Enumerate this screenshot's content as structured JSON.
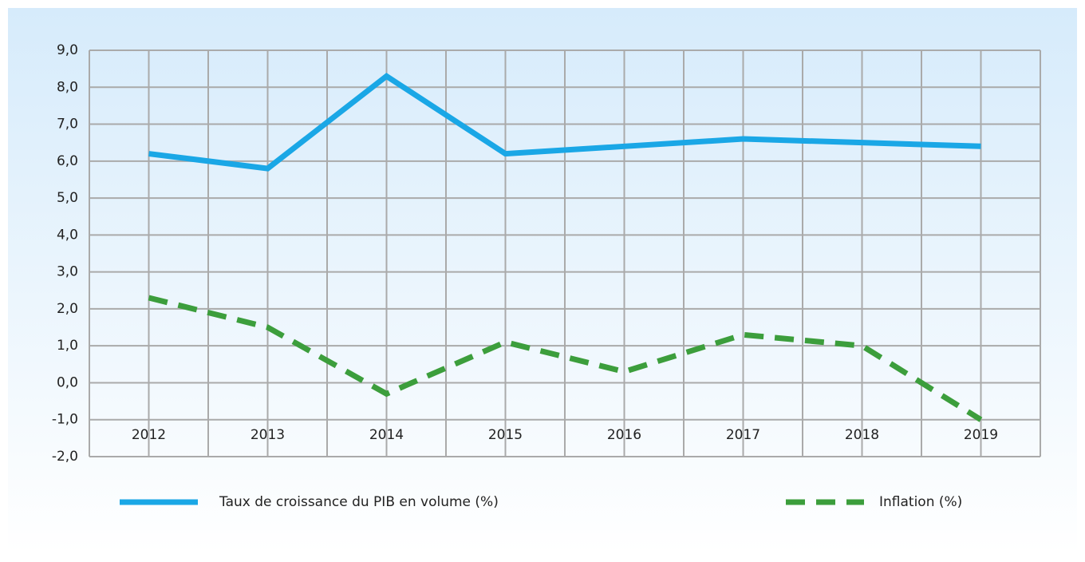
{
  "chart_data": {
    "type": "line",
    "categories": [
      "2012",
      "2013",
      "2014",
      "2015",
      "2016",
      "2017",
      "2018",
      "2019"
    ],
    "series": [
      {
        "name": "Taux de croissance du PIB en volume (%)",
        "color": "#1aa7e6",
        "dash": false,
        "values": [
          6.2,
          5.8,
          8.3,
          6.2,
          6.4,
          6.6,
          6.5,
          6.4
        ]
      },
      {
        "name": "Inflation (%)",
        "color": "#3c9e3c",
        "dash": true,
        "values": [
          2.3,
          1.5,
          -0.3,
          1.1,
          0.3,
          1.3,
          1.0,
          -1.0
        ]
      }
    ],
    "ylim": [
      -2,
      9
    ],
    "yticks": [
      {
        "value": -2,
        "label": "-2,0"
      },
      {
        "value": -1,
        "label": "-1,0"
      },
      {
        "value": 0,
        "label": "0,0"
      },
      {
        "value": 1,
        "label": "1,0"
      },
      {
        "value": 2,
        "label": "2,0"
      },
      {
        "value": 3,
        "label": "3,0"
      },
      {
        "value": 4,
        "label": "4,0"
      },
      {
        "value": 5,
        "label": "5,0"
      },
      {
        "value": 6,
        "label": "6,0"
      },
      {
        "value": 7,
        "label": "7,0"
      },
      {
        "value": 8,
        "label": "8,0"
      },
      {
        "value": 9,
        "label": "9,0"
      }
    ],
    "grid": true
  }
}
